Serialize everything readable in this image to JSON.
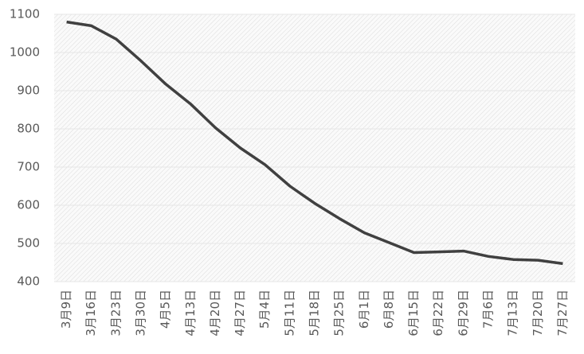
{
  "chart_data": {
    "type": "line",
    "categories": [
      "3月9日",
      "3月16日",
      "3月23日",
      "3月30日",
      "4月5日",
      "4月13日",
      "4月20日",
      "4月27日",
      "5月4日",
      "5月11日",
      "5月18日",
      "5月25日",
      "6月1日",
      "6月8日",
      "6月15日",
      "6月22日",
      "6月29日",
      "7月6日",
      "7月13日",
      "7月20日",
      "7月27日"
    ],
    "values": [
      1080,
      1070,
      1035,
      978,
      917,
      865,
      803,
      750,
      706,
      650,
      605,
      565,
      528,
      502,
      476,
      478,
      480,
      466,
      458,
      456,
      447
    ],
    "color": "#404040",
    "ylim": [
      400,
      1100
    ],
    "yticks": [
      400,
      500,
      600,
      700,
      800,
      900,
      1000,
      1100
    ],
    "grid": true
  }
}
